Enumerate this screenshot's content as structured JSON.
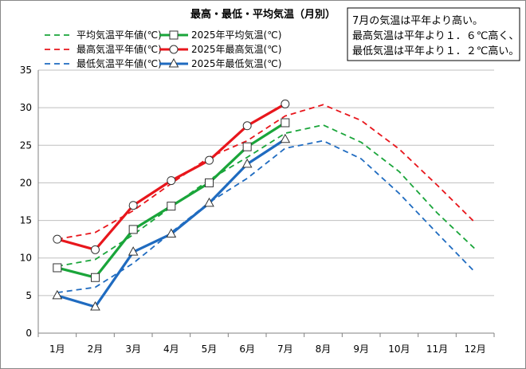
{
  "chart_data": {
    "type": "line",
    "title": "最高・最低・平均気温（月別）",
    "xlabel": "",
    "ylabel": "",
    "ylim": [
      0,
      35
    ],
    "yticks": [
      0,
      5,
      10,
      15,
      20,
      25,
      30,
      35
    ],
    "categories": [
      "1月",
      "2月",
      "3月",
      "4月",
      "5月",
      "6月",
      "7月",
      "8月",
      "9月",
      "10月",
      "11月",
      "12月"
    ],
    "grid": "horizontal",
    "legend_position": "top-left",
    "annotation": [
      "7月の気温は平年より高い。",
      "最高気温は平年より１．６℃高く、",
      "最低気温は平年より１．２℃高い。"
    ],
    "series": [
      {
        "name": "平均気温平年値(℃)",
        "color": "#1aa53a",
        "style": "dashed",
        "marker": "none",
        "values": [
          8.9,
          9.8,
          13.1,
          16.8,
          20.4,
          23.4,
          26.6,
          27.7,
          25.4,
          21.5,
          16.0,
          11.2
        ]
      },
      {
        "name": "2025年平均気温(℃)",
        "color": "#1aa53a",
        "style": "solid",
        "marker": "square",
        "values": [
          8.7,
          7.4,
          13.8,
          16.9,
          20.0,
          24.8,
          28.0,
          null,
          null,
          null,
          null,
          null
        ]
      },
      {
        "name": "最高気温平年値(℃)",
        "color": "#e8161c",
        "style": "dashed",
        "marker": "none",
        "values": [
          12.5,
          13.4,
          16.3,
          19.9,
          23.4,
          25.6,
          28.9,
          30.4,
          28.3,
          24.5,
          19.7,
          14.7
        ]
      },
      {
        "name": "2025年最高気温(℃)",
        "color": "#e8161c",
        "style": "solid",
        "marker": "circle",
        "values": [
          12.5,
          11.1,
          17.0,
          20.3,
          23.0,
          27.6,
          30.5,
          null,
          null,
          null,
          null,
          null
        ]
      },
      {
        "name": "最低気温平年値(℃)",
        "color": "#1f6bc0",
        "style": "dashed",
        "marker": "none",
        "values": [
          5.4,
          6.1,
          9.3,
          13.4,
          17.4,
          20.6,
          24.6,
          25.6,
          23.2,
          18.6,
          13.3,
          8.1
        ]
      },
      {
        "name": "2025年最低気温(℃)",
        "color": "#1f6bc0",
        "style": "solid",
        "marker": "triangle",
        "values": [
          5.0,
          3.5,
          10.8,
          13.2,
          17.3,
          22.5,
          25.8,
          null,
          null,
          null,
          null,
          null
        ]
      }
    ]
  }
}
